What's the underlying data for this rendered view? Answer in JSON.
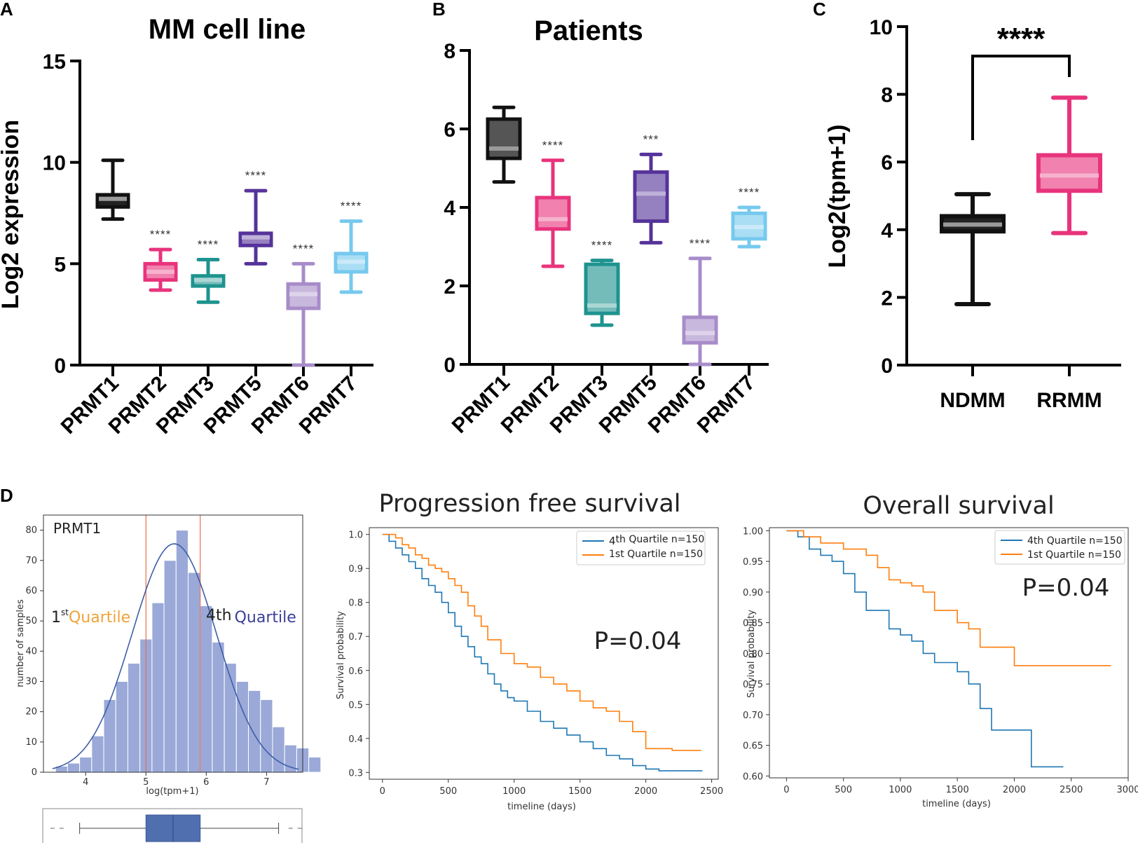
{
  "panel_labels": [
    "A",
    "B",
    "C",
    "D"
  ],
  "colors": {
    "PRMT1": "#111111",
    "PRMT2": "#e8347c",
    "PRMT3": "#1e938f",
    "PRMT5": "#55339a",
    "PRMT6": "#a88cc9",
    "PRMT7": "#76c9ee",
    "NDMM": "#111111",
    "RRMM": "#e8347c",
    "hist": "#9aa9d8",
    "kde": "#3f5ea8",
    "quartile4": "#1f77b4",
    "quartile1": "#ff7f0e"
  },
  "chart_data": [
    {
      "id": "A",
      "type": "box",
      "title": "MM cell line",
      "ylabel": "Log2 expression",
      "ylim": [
        0,
        15
      ],
      "yticks": [
        0,
        5,
        10,
        15
      ],
      "categories": [
        "PRMT1",
        "PRMT2",
        "PRMT3",
        "PRMT5",
        "PRMT6",
        "PRMT7"
      ],
      "boxes": [
        {
          "min": 7.2,
          "q1": 7.8,
          "median": 8.2,
          "q3": 8.4,
          "max": 10.1,
          "sig": ""
        },
        {
          "min": 3.7,
          "q1": 4.2,
          "median": 4.6,
          "q3": 5.0,
          "max": 5.7,
          "sig": "****"
        },
        {
          "min": 3.1,
          "q1": 3.9,
          "median": 4.2,
          "q3": 4.4,
          "max": 5.2,
          "sig": "****"
        },
        {
          "min": 5.0,
          "q1": 5.9,
          "median": 6.3,
          "q3": 6.5,
          "max": 8.6,
          "sig": "****"
        },
        {
          "min": 0.0,
          "q1": 2.8,
          "median": 3.5,
          "q3": 4.0,
          "max": 5.0,
          "sig": "****"
        },
        {
          "min": 3.6,
          "q1": 4.6,
          "median": 5.1,
          "q3": 5.5,
          "max": 7.1,
          "sig": "****"
        }
      ]
    },
    {
      "id": "B",
      "type": "box",
      "title": "Patients",
      "ylabel": "",
      "ylim": [
        0,
        8
      ],
      "yticks": [
        0,
        2,
        4,
        6,
        8
      ],
      "categories": [
        "PRMT1",
        "PRMT2",
        "PRMT3",
        "PRMT5",
        "PRMT6",
        "PRMT7"
      ],
      "boxes": [
        {
          "min": 4.65,
          "q1": 5.25,
          "median": 5.5,
          "q3": 6.25,
          "max": 6.55,
          "sig": ""
        },
        {
          "min": 2.5,
          "q1": 3.45,
          "median": 3.7,
          "q3": 4.25,
          "max": 5.2,
          "sig": "****"
        },
        {
          "min": 1.0,
          "q1": 1.3,
          "median": 1.5,
          "q3": 2.55,
          "max": 2.65,
          "sig": "****"
        },
        {
          "min": 3.1,
          "q1": 3.65,
          "median": 4.35,
          "q3": 4.9,
          "max": 5.35,
          "sig": "***"
        },
        {
          "min": 0.0,
          "q1": 0.55,
          "median": 0.8,
          "q3": 1.2,
          "max": 2.7,
          "sig": "****"
        },
        {
          "min": 3.0,
          "q1": 3.2,
          "median": 3.5,
          "q3": 3.85,
          "max": 4.0,
          "sig": "****"
        }
      ]
    },
    {
      "id": "C",
      "type": "box",
      "title": "",
      "ylabel": "Log2(tpm+1)",
      "ylim": [
        0,
        10
      ],
      "yticks": [
        0,
        2,
        4,
        6,
        8,
        10
      ],
      "categories": [
        "NDMM",
        "RRMM"
      ],
      "boxes": [
        {
          "min": 1.8,
          "q1": 3.95,
          "median": 4.15,
          "q3": 4.4,
          "max": 5.05,
          "sig": ""
        },
        {
          "min": 3.9,
          "q1": 5.15,
          "median": 5.6,
          "q3": 6.2,
          "max": 7.9,
          "sig": ""
        }
      ],
      "comparison": "****"
    },
    {
      "id": "D1",
      "type": "histogram",
      "label": "PRMT1",
      "xlabel": "log(tpm+1)",
      "ylabel": "number of samples",
      "xlim": [
        3.3,
        7.6
      ],
      "ylim": [
        0,
        85
      ],
      "xticks": [
        4,
        5,
        6,
        7
      ],
      "yticks": [
        0,
        10,
        20,
        30,
        40,
        50,
        60,
        70,
        80
      ],
      "bin_start": 3.5,
      "bin_width": 0.2,
      "counts": [
        2,
        3,
        5,
        12,
        24,
        30,
        36,
        44,
        56,
        70,
        80,
        66,
        55,
        43,
        36,
        30,
        27,
        24,
        15,
        9,
        8,
        5
      ],
      "quartile_lines": [
        5.0,
        5.9
      ],
      "first_quartile_label": {
        "num": "1",
        "sup": "st",
        "word": "Quartile"
      },
      "fourth_quartile_label": {
        "num": "4th",
        "word": "Quartile"
      },
      "boxplot": {
        "min": 3.9,
        "q1": 5.0,
        "median": 5.45,
        "q3": 5.9,
        "max": 7.2,
        "outliers": [
          3.45,
          3.6,
          7.4,
          7.55
        ]
      }
    },
    {
      "id": "D2",
      "type": "line",
      "title": "Progression free survival",
      "xlabel": "timeline (days)",
      "ylabel": "Survival probability",
      "xlim": [
        -100,
        2550
      ],
      "ylim": [
        0.28,
        1.02
      ],
      "xticks": [
        0,
        500,
        1000,
        1500,
        2000,
        2500
      ],
      "yticks": [
        0.3,
        0.4,
        0.5,
        0.6,
        0.7,
        0.8,
        0.9,
        1.0
      ],
      "legend": {
        "q4": {
          "pre": "4",
          "rest": "th Quartile n=150"
        },
        "q1": "1st Quartile n=150"
      },
      "pvalue": "P=0.04",
      "series": [
        {
          "name": "4th Quartile n=150",
          "x": [
            0,
            50,
            100,
            150,
            200,
            250,
            300,
            350,
            400,
            450,
            500,
            550,
            600,
            650,
            700,
            750,
            800,
            850,
            900,
            950,
            1000,
            1100,
            1200,
            1300,
            1400,
            1500,
            1600,
            1700,
            1800,
            1900,
            2000,
            2100,
            2200,
            2300,
            2430
          ],
          "y": [
            1.0,
            0.98,
            0.96,
            0.94,
            0.92,
            0.9,
            0.87,
            0.85,
            0.83,
            0.8,
            0.77,
            0.73,
            0.7,
            0.67,
            0.64,
            0.62,
            0.59,
            0.56,
            0.54,
            0.52,
            0.51,
            0.48,
            0.45,
            0.43,
            0.41,
            0.39,
            0.37,
            0.35,
            0.34,
            0.32,
            0.31,
            0.305,
            0.305,
            0.305,
            0.305
          ]
        },
        {
          "name": "1st Quartile n=150",
          "x": [
            0,
            50,
            100,
            150,
            200,
            250,
            300,
            350,
            400,
            450,
            500,
            550,
            600,
            650,
            700,
            750,
            800,
            900,
            1000,
            1100,
            1200,
            1300,
            1400,
            1500,
            1600,
            1700,
            1800,
            1900,
            2000,
            2200,
            2420
          ],
          "y": [
            1.0,
            1.0,
            0.99,
            0.97,
            0.96,
            0.94,
            0.93,
            0.91,
            0.9,
            0.89,
            0.87,
            0.85,
            0.83,
            0.79,
            0.76,
            0.73,
            0.69,
            0.65,
            0.62,
            0.61,
            0.58,
            0.56,
            0.54,
            0.51,
            0.49,
            0.48,
            0.45,
            0.42,
            0.37,
            0.365,
            0.365
          ]
        }
      ]
    },
    {
      "id": "D3",
      "type": "line",
      "title": "Overall survival",
      "xlabel": "timeline (days)",
      "ylabel": "Survival probability",
      "xlim": [
        -150,
        3000
      ],
      "ylim": [
        0.597,
        1.005
      ],
      "xticks": [
        0,
        500,
        1000,
        1500,
        2000,
        2500,
        3000
      ],
      "yticks": [
        0.6,
        0.65,
        0.7,
        0.75,
        0.8,
        0.85,
        0.9,
        0.95,
        1.0
      ],
      "ytick_labels": [
        "0.60",
        "0.65",
        "0.70",
        "0.75",
        "0.80",
        "0.85",
        "0.90",
        "0.95",
        "1.00"
      ],
      "legend": {
        "q4": "4th Quartile n=150",
        "q1": "1st Quartile n=150"
      },
      "pvalue": "P=0.04",
      "series": [
        {
          "name": "4th Quartile n=150",
          "x": [
            0,
            100,
            200,
            300,
            400,
            500,
            600,
            700,
            800,
            900,
            1000,
            1100,
            1200,
            1300,
            1400,
            1500,
            1600,
            1700,
            1800,
            1900,
            2000,
            2150,
            2430
          ],
          "y": [
            1.0,
            0.99,
            0.97,
            0.96,
            0.95,
            0.93,
            0.9,
            0.87,
            0.87,
            0.84,
            0.83,
            0.82,
            0.8,
            0.785,
            0.785,
            0.77,
            0.75,
            0.71,
            0.675,
            0.675,
            0.675,
            0.615,
            0.615
          ]
        },
        {
          "name": "1st Quartile n=150",
          "x": [
            0,
            150,
            300,
            500,
            700,
            800,
            900,
            1000,
            1100,
            1200,
            1300,
            1400,
            1500,
            1600,
            1700,
            1800,
            1900,
            2000,
            2200,
            2400,
            2850
          ],
          "y": [
            1.0,
            0.99,
            0.98,
            0.97,
            0.96,
            0.94,
            0.92,
            0.915,
            0.91,
            0.9,
            0.87,
            0.87,
            0.85,
            0.84,
            0.81,
            0.81,
            0.81,
            0.78,
            0.78,
            0.78,
            0.78
          ]
        }
      ]
    }
  ]
}
